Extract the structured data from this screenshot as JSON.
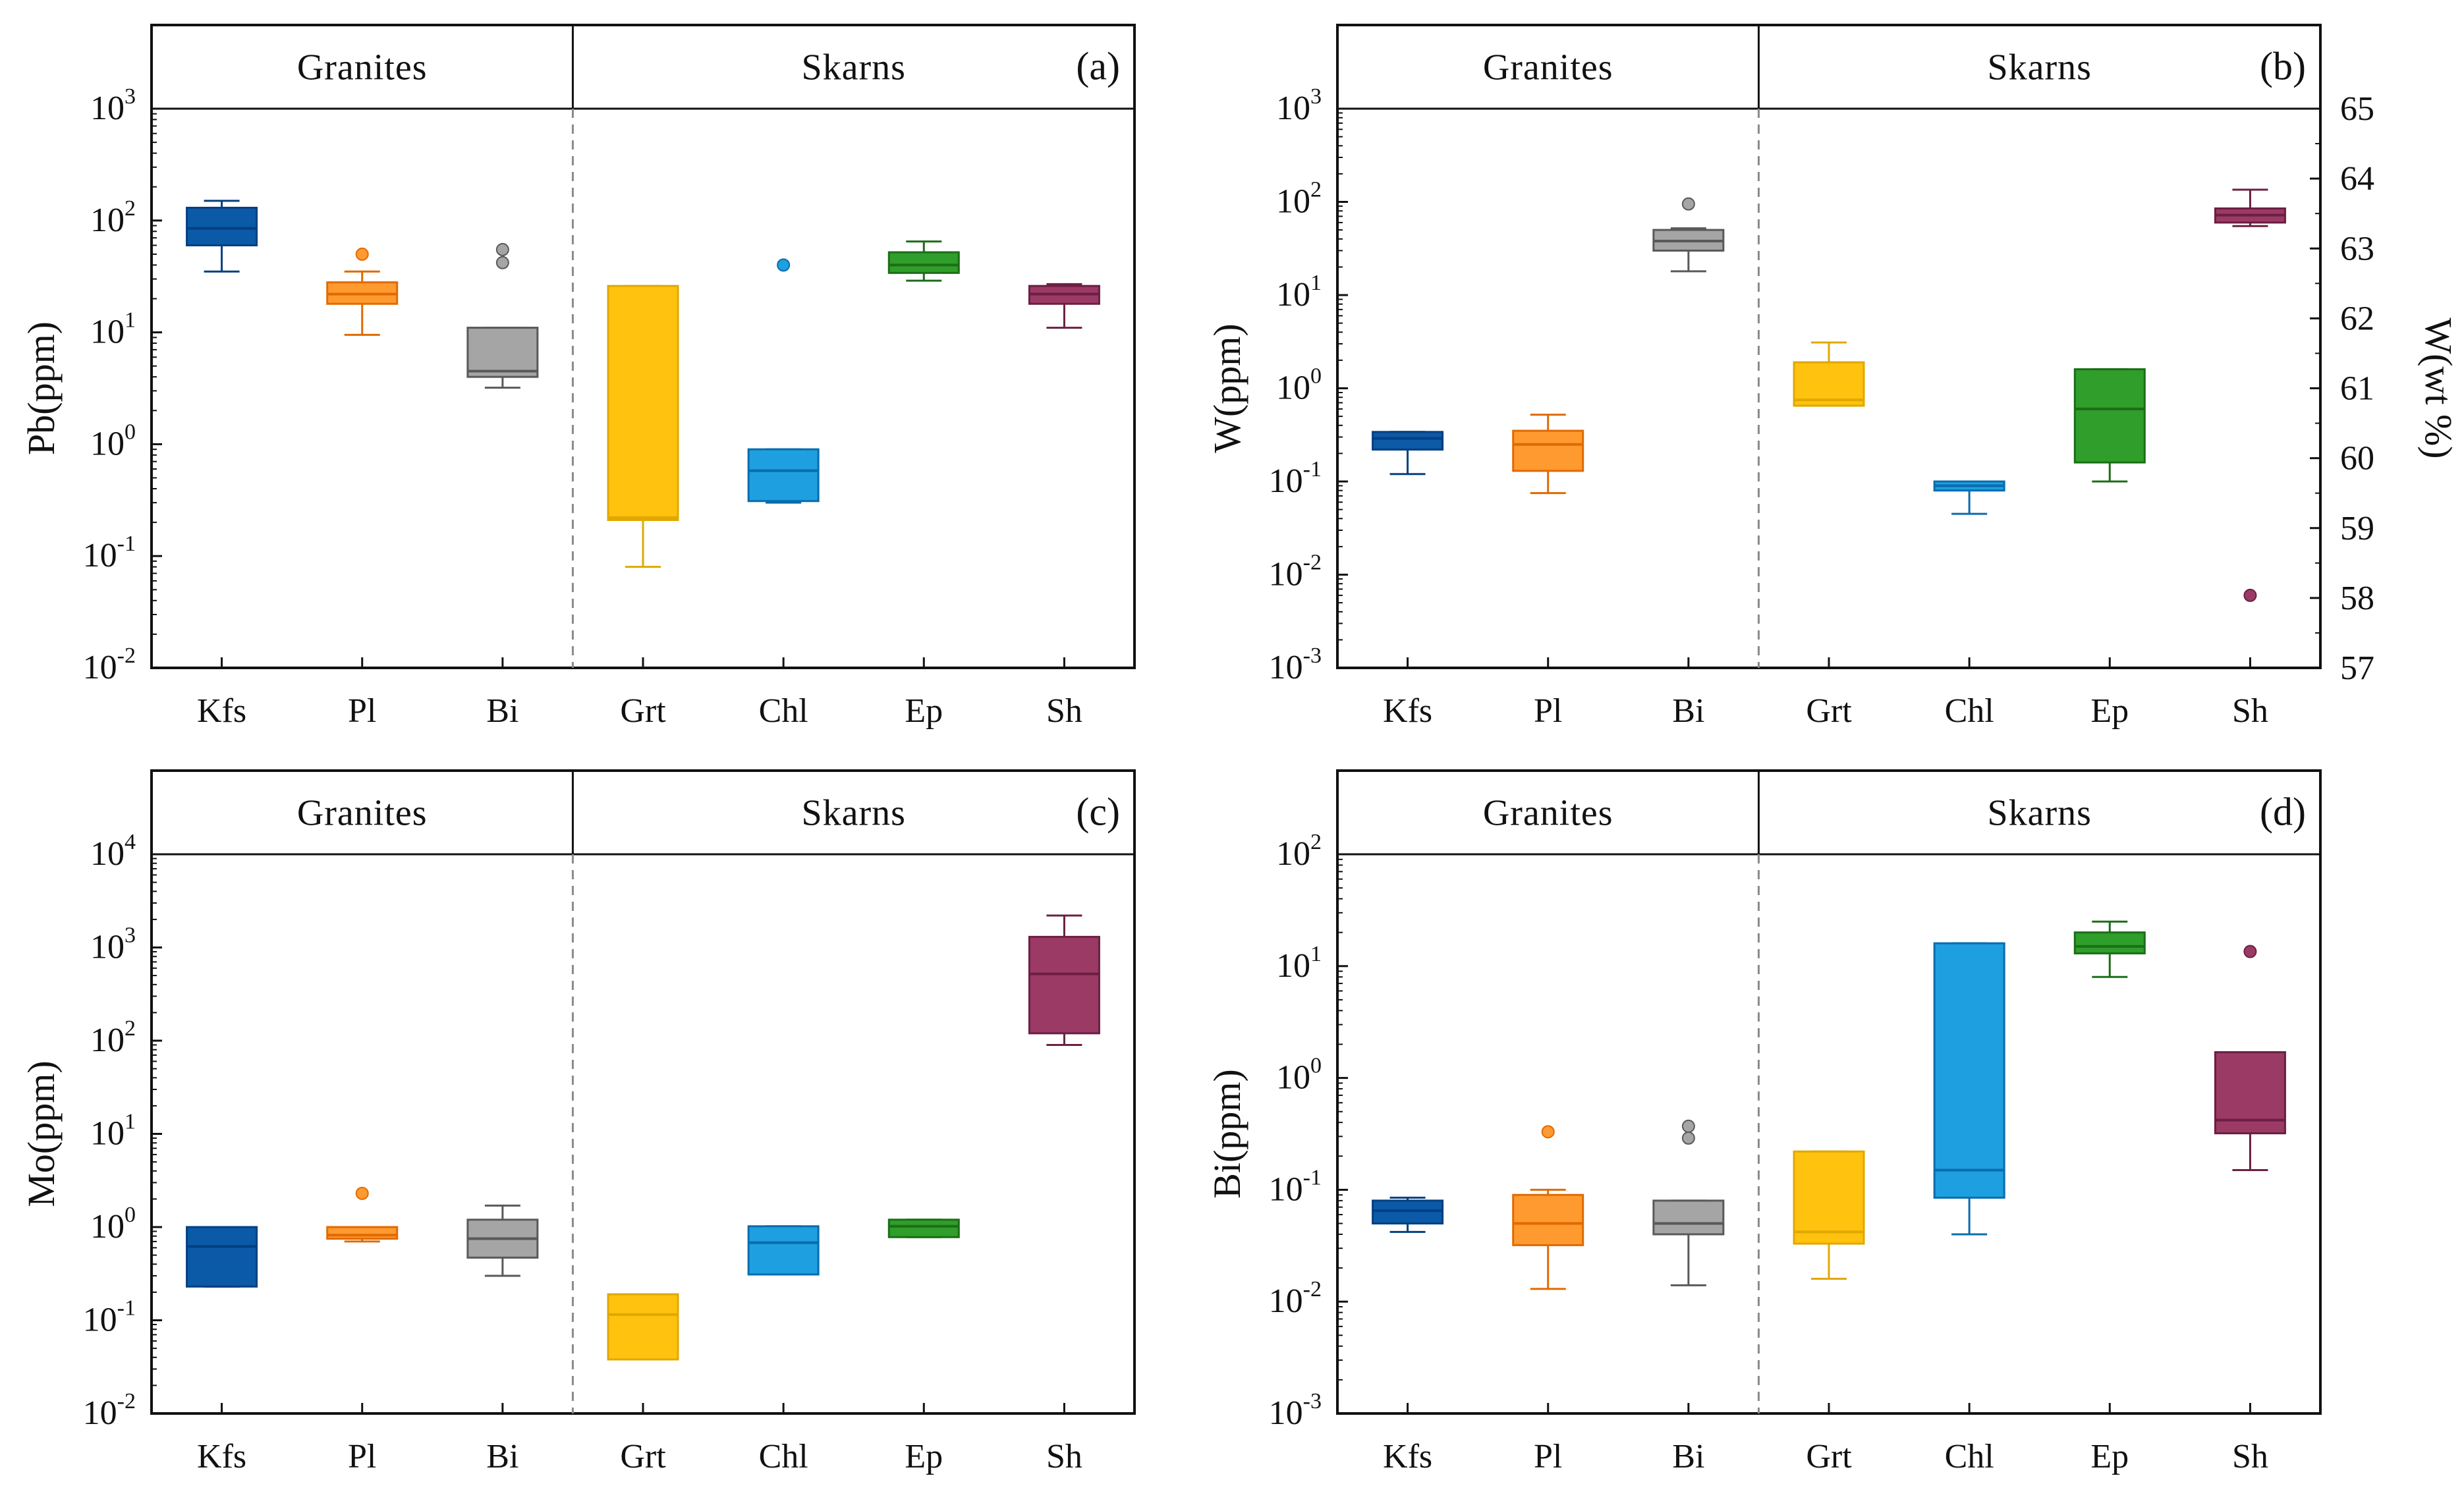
{
  "figure": {
    "group_labels": [
      "Granites",
      "Skarns"
    ],
    "colors": {
      "Kfs": {
        "fill": "#0b5aa8",
        "stroke": "#053f80"
      },
      "Pl": {
        "fill": "#ff9a30",
        "stroke": "#e06a00"
      },
      "Bi": {
        "fill": "#a5a5a5",
        "stroke": "#595959"
      },
      "Grt": {
        "fill": "#ffc20e",
        "stroke": "#e0a800"
      },
      "Chl": {
        "fill": "#1e9fe0",
        "stroke": "#0a6cad"
      },
      "Ep": {
        "fill": "#2f9e2a",
        "stroke": "#1b6e17"
      },
      "Sh": {
        "fill": "#9c3a66",
        "stroke": "#6b1f42"
      }
    }
  },
  "chart_data": [
    {
      "type": "box",
      "panel": "(a)",
      "ylabel": "Pb(ppm)",
      "yscale": "log",
      "ylim_exp": [
        -2,
        3
      ],
      "categories": [
        "Kfs",
        "Pl",
        "Bi",
        "Grt",
        "Chl",
        "Ep",
        "Sh"
      ],
      "boxes": [
        {
          "cat": "Kfs",
          "whislo": 35,
          "q1": 60,
          "med": 85,
          "q3": 130,
          "whishi": 150,
          "fliers": []
        },
        {
          "cat": "Pl",
          "whislo": 9.5,
          "q1": 18,
          "med": 22,
          "q3": 28,
          "whishi": 35,
          "fliers": [
            50
          ]
        },
        {
          "cat": "Bi",
          "whislo": 3.2,
          "q1": 4,
          "med": 4.5,
          "q3": 11,
          "whishi": 11,
          "fliers": [
            42,
            55
          ]
        },
        {
          "cat": "Grt",
          "whislo": 0.08,
          "q1": 0.21,
          "med": 0.22,
          "q3": 26,
          "whishi": 26,
          "fliers": []
        },
        {
          "cat": "Chl",
          "whislo": 0.3,
          "q1": 0.31,
          "med": 0.58,
          "q3": 0.9,
          "whishi": 0.9,
          "fliers": [
            40
          ]
        },
        {
          "cat": "Ep",
          "whislo": 29,
          "q1": 34,
          "med": 40,
          "q3": 52,
          "whishi": 65,
          "fliers": []
        },
        {
          "cat": "Sh",
          "whislo": 11,
          "q1": 18,
          "med": 22,
          "q3": 26,
          "whishi": 27,
          "fliers": []
        }
      ]
    },
    {
      "type": "box",
      "panel": "(b)",
      "ylabel": "W(ppm)",
      "y2label": "W(wt %)",
      "y2ticks": [
        "57",
        "58",
        "59",
        "60",
        "61",
        "62",
        "63",
        "64",
        "65"
      ],
      "yscale": "log",
      "ylim_exp": [
        -3,
        3
      ],
      "categories": [
        "Kfs",
        "Pl",
        "Bi",
        "Grt",
        "Chl",
        "Ep",
        "Sh"
      ],
      "boxes": [
        {
          "cat": "Kfs",
          "whislo": 0.12,
          "q1": 0.22,
          "med": 0.29,
          "q3": 0.34,
          "whishi": 0.34,
          "fliers": []
        },
        {
          "cat": "Pl",
          "whislo": 0.075,
          "q1": 0.13,
          "med": 0.25,
          "q3": 0.35,
          "whishi": 0.52,
          "fliers": []
        },
        {
          "cat": "Bi",
          "whislo": 18,
          "q1": 30,
          "med": 38,
          "q3": 50,
          "whishi": 52,
          "fliers": [
            95
          ]
        },
        {
          "cat": "Grt",
          "whislo": 0.65,
          "q1": 0.65,
          "med": 0.75,
          "q3": 1.9,
          "whishi": 3.1,
          "fliers": []
        },
        {
          "cat": "Chl",
          "whislo": 0.045,
          "q1": 0.08,
          "med": 0.09,
          "q3": 0.1,
          "whishi": 0.1,
          "fliers": []
        },
        {
          "cat": "Ep",
          "whislo": 0.1,
          "q1": 0.16,
          "med": 0.6,
          "q3": 1.6,
          "whishi": 1.6,
          "fliers": []
        },
        {
          "cat": "Sh",
          "whislo": 55,
          "q1": 60,
          "med": 72,
          "q3": 85,
          "whishi": 135,
          "fliers": [
            0.006
          ]
        }
      ]
    },
    {
      "type": "box",
      "panel": "(c)",
      "ylabel": "Mo(ppm)",
      "yscale": "log",
      "ylim_exp": [
        -2,
        4
      ],
      "categories": [
        "Kfs",
        "Pl",
        "Bi",
        "Grt",
        "Chl",
        "Ep",
        "Sh"
      ],
      "boxes": [
        {
          "cat": "Kfs",
          "whislo": 0.23,
          "q1": 0.23,
          "med": 0.62,
          "q3": 1.0,
          "whishi": 1.0,
          "fliers": []
        },
        {
          "cat": "Pl",
          "whislo": 0.7,
          "q1": 0.75,
          "med": 0.82,
          "q3": 1.0,
          "whishi": 1.0,
          "fliers": [
            2.3
          ]
        },
        {
          "cat": "Bi",
          "whislo": 0.3,
          "q1": 0.47,
          "med": 0.75,
          "q3": 1.2,
          "whishi": 1.7,
          "fliers": []
        },
        {
          "cat": "Grt",
          "whislo": 0.038,
          "q1": 0.038,
          "med": 0.115,
          "q3": 0.19,
          "whishi": 0.19,
          "fliers": []
        },
        {
          "cat": "Chl",
          "whislo": 0.31,
          "q1": 0.31,
          "med": 0.68,
          "q3": 1.02,
          "whishi": 1.02,
          "fliers": []
        },
        {
          "cat": "Ep",
          "whislo": 0.78,
          "q1": 0.78,
          "med": 1.02,
          "q3": 1.2,
          "whishi": 1.2,
          "fliers": []
        },
        {
          "cat": "Sh",
          "whislo": 90,
          "q1": 120,
          "med": 520,
          "q3": 1300,
          "whishi": 2200,
          "fliers": []
        }
      ]
    },
    {
      "type": "box",
      "panel": "(d)",
      "ylabel": "Bi(ppm)",
      "yscale": "log",
      "ylim_exp": [
        -3,
        2
      ],
      "categories": [
        "Kfs",
        "Pl",
        "Bi",
        "Grt",
        "Chl",
        "Ep",
        "Sh"
      ],
      "boxes": [
        {
          "cat": "Kfs",
          "whislo": 0.042,
          "q1": 0.05,
          "med": 0.065,
          "q3": 0.08,
          "whishi": 0.085,
          "fliers": []
        },
        {
          "cat": "Pl",
          "whislo": 0.013,
          "q1": 0.032,
          "med": 0.05,
          "q3": 0.09,
          "whishi": 0.1,
          "fliers": [
            0.33
          ]
        },
        {
          "cat": "Bi",
          "whislo": 0.014,
          "q1": 0.04,
          "med": 0.05,
          "q3": 0.08,
          "whishi": 0.08,
          "fliers": [
            0.29,
            0.37
          ]
        },
        {
          "cat": "Grt",
          "whislo": 0.016,
          "q1": 0.033,
          "med": 0.042,
          "q3": 0.22,
          "whishi": 0.22,
          "fliers": []
        },
        {
          "cat": "Chl",
          "whislo": 0.04,
          "q1": 0.085,
          "med": 0.15,
          "q3": 16,
          "whishi": 16,
          "fliers": []
        },
        {
          "cat": "Ep",
          "whislo": 8,
          "q1": 13,
          "med": 15,
          "q3": 20,
          "whishi": 25,
          "fliers": []
        },
        {
          "cat": "Sh",
          "whislo": 0.15,
          "q1": 0.32,
          "med": 0.42,
          "q3": 1.7,
          "whishi": 1.7,
          "fliers": [
            13.5
          ]
        }
      ]
    }
  ]
}
